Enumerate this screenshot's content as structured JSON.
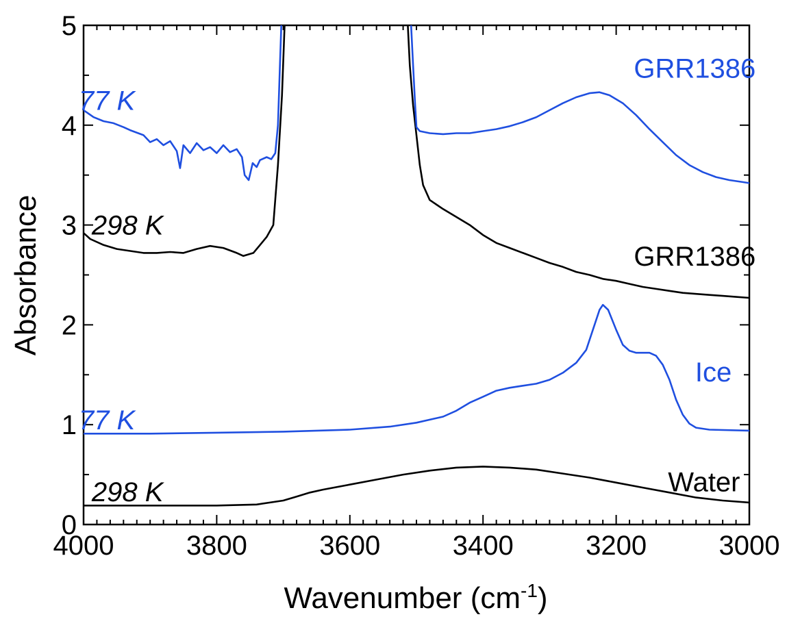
{
  "chart_data": {
    "type": "line",
    "xlabel": "Wavenumber (cm",
    "xlabel_superscript": "-1",
    "xlabel_close": ")",
    "ylabel": "Absorbance",
    "xlim": [
      4000,
      3000
    ],
    "ylim": [
      0,
      5
    ],
    "x_reversed": true,
    "grid": false,
    "x_ticks": [
      4000,
      3800,
      3600,
      3400,
      3200,
      3000
    ],
    "y_ticks": [
      0,
      1,
      2,
      3,
      4,
      5
    ],
    "colors": {
      "blue": "#1f4fe0",
      "black": "#000000"
    },
    "series": [
      {
        "color": "#000000",
        "points": [
          [
            4000,
            0.19
          ],
          [
            3900,
            0.19
          ],
          [
            3800,
            0.19
          ],
          [
            3740,
            0.2
          ],
          [
            3700,
            0.24
          ],
          [
            3680,
            0.28
          ],
          [
            3660,
            0.32
          ],
          [
            3640,
            0.35
          ],
          [
            3600,
            0.4
          ],
          [
            3560,
            0.45
          ],
          [
            3520,
            0.5
          ],
          [
            3480,
            0.54
          ],
          [
            3440,
            0.57
          ],
          [
            3400,
            0.58
          ],
          [
            3360,
            0.57
          ],
          [
            3320,
            0.55
          ],
          [
            3280,
            0.51
          ],
          [
            3240,
            0.47
          ],
          [
            3200,
            0.42
          ],
          [
            3160,
            0.37
          ],
          [
            3120,
            0.32
          ],
          [
            3080,
            0.27
          ],
          [
            3040,
            0.24
          ],
          [
            3000,
            0.22
          ]
        ]
      },
      {
        "color": "#1f4fe0",
        "points": [
          [
            4000,
            0.91
          ],
          [
            3900,
            0.91
          ],
          [
            3800,
            0.92
          ],
          [
            3700,
            0.93
          ],
          [
            3600,
            0.95
          ],
          [
            3540,
            0.98
          ],
          [
            3500,
            1.02
          ],
          [
            3460,
            1.08
          ],
          [
            3440,
            1.14
          ],
          [
            3420,
            1.22
          ],
          [
            3400,
            1.28
          ],
          [
            3380,
            1.34
          ],
          [
            3360,
            1.37
          ],
          [
            3340,
            1.39
          ],
          [
            3320,
            1.41
          ],
          [
            3300,
            1.45
          ],
          [
            3280,
            1.52
          ],
          [
            3260,
            1.62
          ],
          [
            3245,
            1.75
          ],
          [
            3235,
            1.95
          ],
          [
            3225,
            2.15
          ],
          [
            3220,
            2.2
          ],
          [
            3212,
            2.15
          ],
          [
            3200,
            1.95
          ],
          [
            3190,
            1.8
          ],
          [
            3180,
            1.74
          ],
          [
            3170,
            1.72
          ],
          [
            3160,
            1.72
          ],
          [
            3150,
            1.72
          ],
          [
            3140,
            1.69
          ],
          [
            3130,
            1.6
          ],
          [
            3120,
            1.45
          ],
          [
            3110,
            1.25
          ],
          [
            3100,
            1.1
          ],
          [
            3090,
            1.01
          ],
          [
            3080,
            0.97
          ],
          [
            3060,
            0.95
          ],
          [
            3000,
            0.94
          ]
        ]
      },
      {
        "color": "#000000",
        "points": [
          [
            4000,
            2.92
          ],
          [
            3990,
            2.86
          ],
          [
            3970,
            2.8
          ],
          [
            3950,
            2.76
          ],
          [
            3930,
            2.74
          ],
          [
            3910,
            2.72
          ],
          [
            3890,
            2.72
          ],
          [
            3870,
            2.73
          ],
          [
            3850,
            2.72
          ],
          [
            3830,
            2.76
          ],
          [
            3810,
            2.79
          ],
          [
            3790,
            2.77
          ],
          [
            3770,
            2.72
          ],
          [
            3760,
            2.69
          ],
          [
            3745,
            2.72
          ],
          [
            3735,
            2.8
          ],
          [
            3725,
            2.88
          ],
          [
            3715,
            3.0
          ],
          [
            3708,
            3.6
          ],
          [
            3702,
            4.3
          ],
          [
            3698,
            5.0
          ],
          null,
          [
            3513,
            5.0
          ],
          [
            3510,
            4.6
          ],
          [
            3505,
            4.2
          ],
          [
            3500,
            3.9
          ],
          [
            3495,
            3.6
          ],
          [
            3490,
            3.4
          ],
          [
            3480,
            3.25
          ],
          [
            3460,
            3.16
          ],
          [
            3440,
            3.08
          ],
          [
            3420,
            3.0
          ],
          [
            3400,
            2.9
          ],
          [
            3380,
            2.82
          ],
          [
            3360,
            2.77
          ],
          [
            3340,
            2.72
          ],
          [
            3320,
            2.67
          ],
          [
            3300,
            2.62
          ],
          [
            3280,
            2.58
          ],
          [
            3260,
            2.53
          ],
          [
            3240,
            2.5
          ],
          [
            3220,
            2.46
          ],
          [
            3200,
            2.44
          ],
          [
            3180,
            2.41
          ],
          [
            3160,
            2.38
          ],
          [
            3140,
            2.36
          ],
          [
            3120,
            2.34
          ],
          [
            3100,
            2.32
          ],
          [
            3080,
            2.31
          ],
          [
            3060,
            2.3
          ],
          [
            3040,
            2.29
          ],
          [
            3020,
            2.28
          ],
          [
            3000,
            2.27
          ]
        ]
      },
      {
        "color": "#1f4fe0",
        "points": [
          [
            4000,
            4.15
          ],
          [
            3985,
            4.08
          ],
          [
            3970,
            4.04
          ],
          [
            3955,
            4.02
          ],
          [
            3940,
            3.98
          ],
          [
            3930,
            3.95
          ],
          [
            3910,
            3.9
          ],
          [
            3900,
            3.83
          ],
          [
            3890,
            3.86
          ],
          [
            3880,
            3.8
          ],
          [
            3870,
            3.84
          ],
          [
            3860,
            3.74
          ],
          [
            3855,
            3.57
          ],
          [
            3850,
            3.8
          ],
          [
            3840,
            3.72
          ],
          [
            3830,
            3.82
          ],
          [
            3820,
            3.75
          ],
          [
            3810,
            3.78
          ],
          [
            3800,
            3.72
          ],
          [
            3790,
            3.8
          ],
          [
            3780,
            3.73
          ],
          [
            3770,
            3.76
          ],
          [
            3762,
            3.68
          ],
          [
            3758,
            3.5
          ],
          [
            3752,
            3.45
          ],
          [
            3746,
            3.62
          ],
          [
            3740,
            3.58
          ],
          [
            3735,
            3.65
          ],
          [
            3725,
            3.68
          ],
          [
            3718,
            3.66
          ],
          [
            3712,
            3.72
          ],
          [
            3708,
            4.0
          ],
          [
            3705,
            4.6
          ],
          [
            3703,
            5.0
          ],
          null,
          [
            3508,
            5.0
          ],
          [
            3505,
            4.6
          ],
          [
            3502,
            4.2
          ],
          [
            3500,
            3.98
          ],
          [
            3495,
            3.94
          ],
          [
            3480,
            3.92
          ],
          [
            3460,
            3.91
          ],
          [
            3440,
            3.92
          ],
          [
            3420,
            3.92
          ],
          [
            3400,
            3.94
          ],
          [
            3380,
            3.96
          ],
          [
            3360,
            3.99
          ],
          [
            3340,
            4.03
          ],
          [
            3320,
            4.08
          ],
          [
            3300,
            4.15
          ],
          [
            3280,
            4.22
          ],
          [
            3260,
            4.28
          ],
          [
            3240,
            4.32
          ],
          [
            3225,
            4.33
          ],
          [
            3210,
            4.3
          ],
          [
            3190,
            4.22
          ],
          [
            3170,
            4.1
          ],
          [
            3150,
            3.96
          ],
          [
            3130,
            3.83
          ],
          [
            3110,
            3.7
          ],
          [
            3090,
            3.6
          ],
          [
            3070,
            3.53
          ],
          [
            3050,
            3.48
          ],
          [
            3030,
            3.45
          ],
          [
            3010,
            3.43
          ],
          [
            3000,
            3.42
          ]
        ]
      }
    ],
    "annotations": [
      {
        "text": "77 K",
        "x": 3965,
        "y": 4.25,
        "color": "#1f4fe0",
        "italic": true,
        "anchor": "middle"
      },
      {
        "text": "GRR1386",
        "x": 3082,
        "y": 4.57,
        "color": "#1f4fe0",
        "italic": false,
        "anchor": "middle"
      },
      {
        "text": "298 K",
        "x": 3934,
        "y": 3.0,
        "color": "#000000",
        "italic": false,
        "italic_true": true,
        "anchor": "middle"
      },
      {
        "text": "GRR1386",
        "x": 3082,
        "y": 2.69,
        "color": "#000000",
        "italic": false,
        "anchor": "middle"
      },
      {
        "text": "Ice",
        "x": 3054,
        "y": 1.53,
        "color": "#1f4fe0",
        "italic": false,
        "anchor": "middle"
      },
      {
        "text": "77 K",
        "x": 3965,
        "y": 1.05,
        "color": "#1f4fe0",
        "italic": true,
        "anchor": "middle"
      },
      {
        "text": "Water",
        "x": 3068,
        "y": 0.43,
        "color": "#000000",
        "italic": false,
        "anchor": "middle"
      },
      {
        "text": "298 K",
        "x": 3934,
        "y": 0.33,
        "color": "#000000",
        "italic": true,
        "anchor": "middle"
      }
    ]
  }
}
